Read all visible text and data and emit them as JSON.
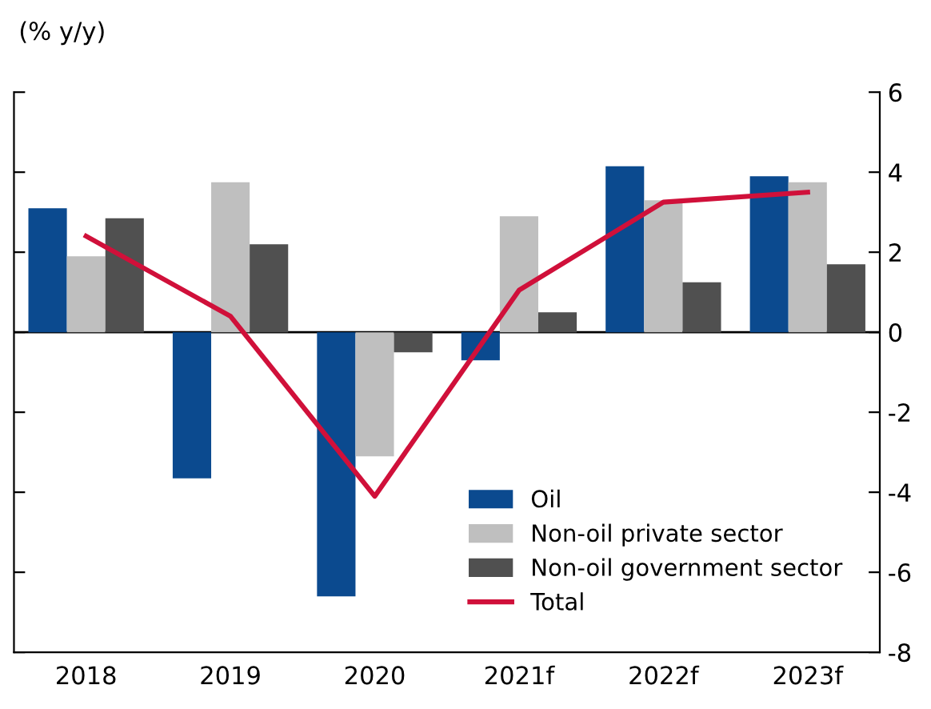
{
  "chart_data": {
    "type": "bar",
    "ylabel": "(% y/y)",
    "categories": [
      "2018",
      "2019",
      "2020",
      "2021f",
      "2022f",
      "2023f"
    ],
    "series": [
      {
        "name": "Oil",
        "color": "#0b4a8f",
        "values": [
          3.1,
          -3.65,
          -6.6,
          -0.7,
          4.15,
          3.9
        ]
      },
      {
        "name": "Non-oil private sector",
        "color": "#bfbfbf",
        "values": [
          1.9,
          3.75,
          -3.1,
          2.9,
          3.3,
          3.75
        ]
      },
      {
        "name": "Non-oil government sector",
        "color": "#505050",
        "values": [
          2.85,
          2.2,
          -0.5,
          0.5,
          1.25,
          1.7
        ]
      },
      {
        "name": "Total",
        "type": "line",
        "color": "#d0103a",
        "values": [
          2.4,
          0.4,
          -4.1,
          1.05,
          3.25,
          3.5
        ]
      }
    ],
    "ylim": [
      -8,
      6
    ],
    "yticks": [
      -8,
      -6,
      -4,
      -2,
      0,
      2,
      4,
      6
    ],
    "ref_lines": [
      {
        "axis": "y",
        "value": 0,
        "color": "#000000"
      }
    ],
    "legend": "bottom right",
    "grid": false
  }
}
